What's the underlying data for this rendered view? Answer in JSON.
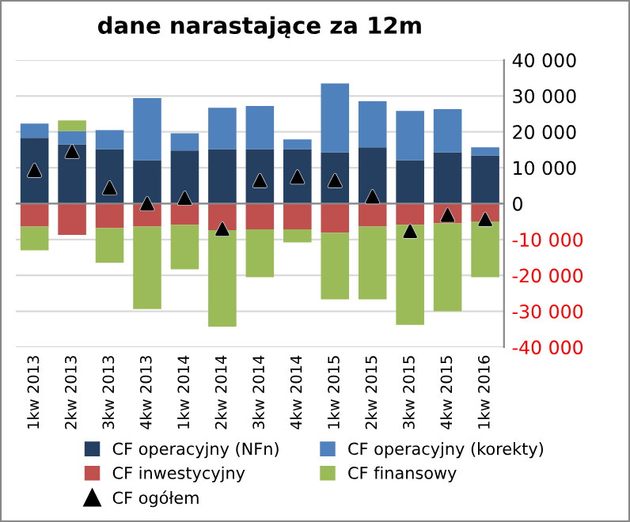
{
  "chart_data": {
    "type": "bar",
    "stacked": true,
    "title": "dane narastające za 12m",
    "categories": [
      "1kw 2013",
      "2kw 2013",
      "3kw 2013",
      "4kw 2013",
      "1kw 2014",
      "2kw 2014",
      "3kw 2014",
      "4kw 2014",
      "1kw 2015",
      "2kw 2015",
      "3kw 2015",
      "4kw 2015",
      "1kw 2016"
    ],
    "series": [
      {
        "name": "CF operacyjny (NFn)",
        "color": "#243f60",
        "values": [
          18300,
          16500,
          15200,
          12100,
          14800,
          15200,
          15200,
          15200,
          14300,
          15700,
          12100,
          14300,
          13400
        ]
      },
      {
        "name": "CF operacyjny (korekty)",
        "color": "#4f81bd",
        "values": [
          4000,
          3700,
          5300,
          17300,
          4800,
          11500,
          12000,
          2700,
          19200,
          12800,
          13700,
          12000,
          2300
        ]
      },
      {
        "name": "CF inwestycyjny",
        "color": "#c0504d",
        "values": [
          -6400,
          -8700,
          -6800,
          -6400,
          -5900,
          -7400,
          -7200,
          -7200,
          -8100,
          -6400,
          -5900,
          -5500,
          -5000
        ]
      },
      {
        "name": "CF finansowy",
        "color": "#9bbb59",
        "values": [
          -6600,
          3000,
          -9700,
          -23000,
          -12400,
          -26900,
          -13300,
          -3600,
          -18600,
          -20300,
          -27900,
          -24500,
          -15500
        ]
      },
      {
        "name": "CF ogółem",
        "type": "scatter",
        "color": "#000000",
        "marker": "triangle",
        "values": [
          9300,
          14500,
          4400,
          0,
          1500,
          -7100,
          6400,
          7400,
          6400,
          1900,
          -7700,
          -3200,
          -4400
        ]
      }
    ],
    "ylim": [
      -40000,
      40000
    ],
    "yticks": [
      {
        "value": -40000,
        "label": "-40 000"
      },
      {
        "value": -30000,
        "label": "-30 000"
      },
      {
        "value": -20000,
        "label": "-20 000"
      },
      {
        "value": -10000,
        "label": "-10 000"
      },
      0,
      {
        "value": 10000,
        "label": "10 000"
      },
      {
        "value": 20000,
        "label": "20 000"
      },
      {
        "value": 30000,
        "label": "30 000"
      },
      {
        "value": 40000,
        "label": "40 000"
      }
    ],
    "grid": "y",
    "legend": "bottom"
  }
}
